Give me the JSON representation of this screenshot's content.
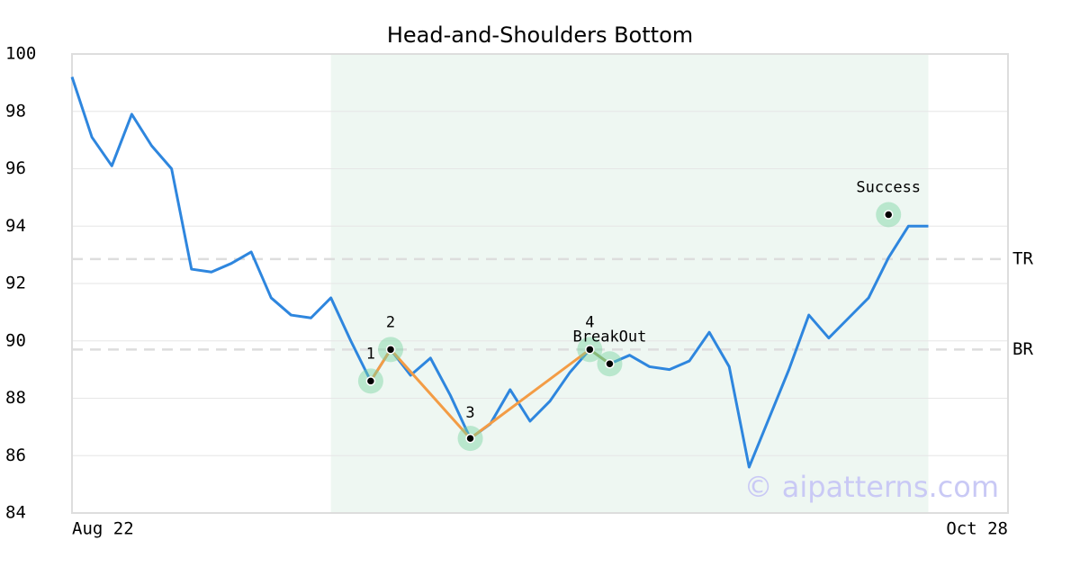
{
  "chart_data": {
    "type": "line",
    "title": "Head-and-Shoulders Bottom",
    "x": [
      0,
      1,
      2,
      3,
      4,
      5,
      6,
      7,
      8,
      9,
      10,
      11,
      12,
      13,
      14,
      15,
      16,
      17,
      18,
      19,
      20,
      21,
      22,
      23,
      24,
      25,
      26,
      27,
      28,
      29,
      30,
      31,
      32,
      33,
      34,
      35,
      36,
      37,
      38,
      39,
      40,
      41,
      42,
      43
    ],
    "series": [
      {
        "color": "#2e86de",
        "values": [
          99.2,
          97.1,
          96.1,
          97.9,
          96.8,
          96.0,
          92.5,
          92.4,
          92.7,
          93.1,
          91.5,
          90.9,
          90.8,
          91.5,
          90.0,
          88.6,
          89.7,
          88.8,
          89.4,
          88.1,
          86.6,
          87.1,
          88.3,
          87.2,
          87.9,
          88.9,
          89.7,
          89.2,
          89.5,
          89.1,
          89.0,
          89.3,
          90.3,
          89.1,
          85.6,
          87.3,
          89.0,
          90.9,
          90.1,
          90.8,
          91.5,
          92.9,
          94.0,
          94.0
        ]
      }
    ],
    "xlim": [
      0,
      47
    ],
    "xticks": [
      {
        "value": 0,
        "label": "Aug 22"
      },
      {
        "value": 47,
        "label": "Oct 28"
      }
    ],
    "ylim": [
      84,
      100
    ],
    "yticks": [
      84,
      86,
      88,
      90,
      92,
      94,
      96,
      98,
      100
    ],
    "grid": true,
    "highlight_range": [
      13,
      43
    ],
    "levels": [
      {
        "label": "TR",
        "value": 92.85
      },
      {
        "label": "BR",
        "value": 89.7
      }
    ],
    "pattern_points": [
      {
        "label": "1",
        "x": 15,
        "y": 88.6
      },
      {
        "label": "2",
        "x": 16,
        "y": 89.7
      },
      {
        "label": "3",
        "x": 20,
        "y": 86.6
      },
      {
        "label": "4",
        "x": 26,
        "y": 89.7
      },
      {
        "label": "BreakOut",
        "x": 27,
        "y": 89.2
      }
    ],
    "pattern_color": "#f39c45",
    "breakout_color": "#9aa85a",
    "success": {
      "label": "Success",
      "x": 41,
      "y": 94.4
    },
    "watermark": "© aipatterns.com"
  }
}
